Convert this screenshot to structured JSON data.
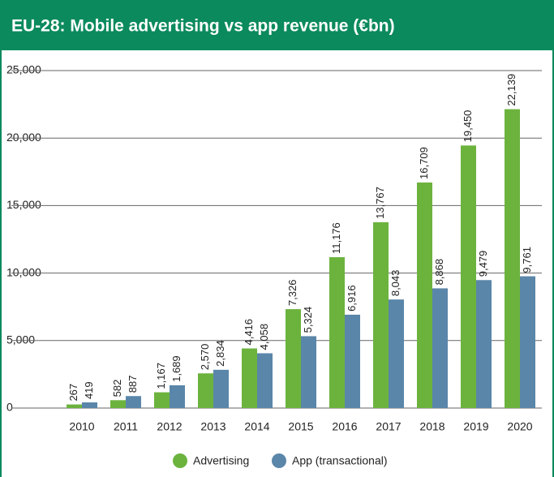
{
  "chart_data": {
    "type": "bar",
    "title": "EU-28: Mobile advertising vs app revenue (€bn)",
    "categories": [
      "2010",
      "2011",
      "2012",
      "2013",
      "2014",
      "2015",
      "2016",
      "2017",
      "2018",
      "2019",
      "2020"
    ],
    "series": [
      {
        "name": "Advertising",
        "color": "#6cb33e",
        "values": [
          267,
          582,
          1167,
          2570,
          4416,
          7326,
          11176,
          13767,
          16709,
          19450,
          22139
        ],
        "value_labels": [
          "267",
          "582",
          "1,167",
          "2,570",
          "4,416",
          "7,326",
          "11,176",
          "13,767",
          "16,709",
          "19,450",
          "22,139"
        ]
      },
      {
        "name": "App (transactional)",
        "color": "#5a86a9",
        "values": [
          419,
          887,
          1689,
          2834,
          4058,
          5324,
          6916,
          8043,
          8868,
          9479,
          9761
        ],
        "value_labels": [
          "419",
          "887",
          "1,689",
          "2,834",
          "4,058",
          "5,324",
          "6,916",
          "8,043",
          "8,868",
          "9,479",
          "9,761"
        ]
      }
    ],
    "ylim": [
      0,
      25000
    ],
    "yticks": [
      0,
      {
        "value": 5000,
        "label": "5,000"
      },
      {
        "value": 10000,
        "label": "10,000"
      },
      {
        "value": 15000,
        "label": "15,000"
      },
      {
        "value": 20000,
        "label": "20,000"
      },
      {
        "value": 25000,
        "label": "25,000"
      }
    ],
    "grid": true
  }
}
